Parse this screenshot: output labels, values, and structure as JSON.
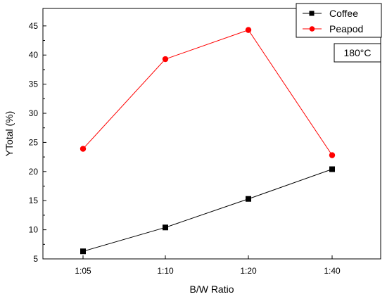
{
  "chart_data": {
    "type": "line",
    "categories": [
      "1:05",
      "1:10",
      "1:20",
      "1:40"
    ],
    "series": [
      {
        "name": "Coffee",
        "values": [
          6.3,
          10.4,
          15.3,
          20.4
        ],
        "color": "#000000",
        "marker": "square"
      },
      {
        "name": "Peapod",
        "values": [
          23.9,
          39.3,
          44.3,
          22.8
        ],
        "color": "#ff0000",
        "marker": "circle"
      }
    ],
    "title": "",
    "xlabel": "B/W Ratio",
    "ylabel": "YTotal (%)",
    "ylim": [
      5,
      48
    ],
    "yticks": [
      5,
      10,
      15,
      20,
      25,
      30,
      35,
      40,
      45
    ],
    "annotation": "180°C",
    "grid": false,
    "legend_position": "top-right"
  }
}
